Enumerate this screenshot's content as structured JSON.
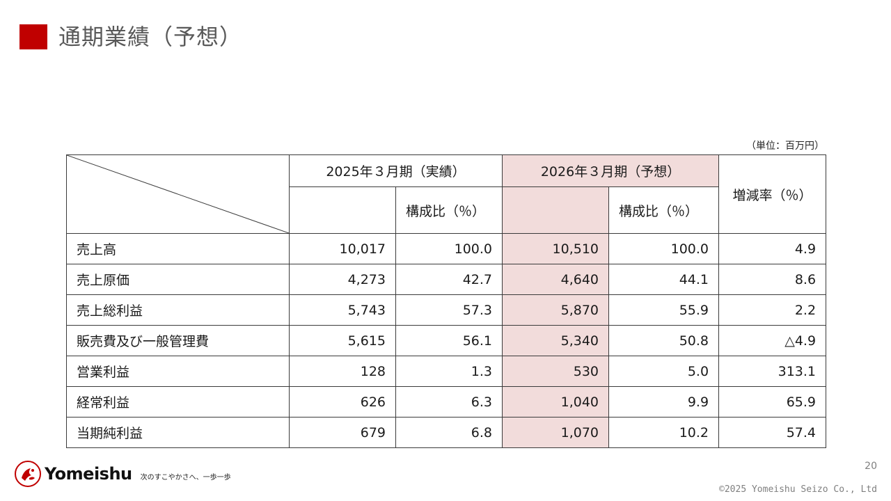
{
  "header": {
    "title": "通期業績（予想）"
  },
  "unit_note": "（単位：百万円）",
  "table": {
    "col_fy2025": "2025年３月期（実績）",
    "col_fy2026": "2026年３月期（予想）",
    "col_ratio_2025": "構成比（％）",
    "col_ratio_2026": "構成比（％）",
    "col_change": "増減率（％）",
    "rows": [
      {
        "label": "売上高",
        "fy2025": "10,017",
        "ratio2025": "100.0",
        "fy2026": "10,510",
        "ratio2026": "100.0",
        "change": "4.9"
      },
      {
        "label": "売上原価",
        "fy2025": "4,273",
        "ratio2025": "42.7",
        "fy2026": "4,640",
        "ratio2026": "44.1",
        "change": "8.6"
      },
      {
        "label": "売上総利益",
        "fy2025": "5,743",
        "ratio2025": "57.3",
        "fy2026": "5,870",
        "ratio2026": "55.9",
        "change": "2.2"
      },
      {
        "label": "販売費及び一般管理費",
        "fy2025": "5,615",
        "ratio2025": "56.1",
        "fy2026": "5,340",
        "ratio2026": "50.8",
        "change": "△4.9"
      },
      {
        "label": "営業利益",
        "fy2025": "128",
        "ratio2025": "1.3",
        "fy2026": "530",
        "ratio2026": "5.0",
        "change": "313.1"
      },
      {
        "label": "経常利益",
        "fy2025": "626",
        "ratio2025": "6.3",
        "fy2026": "1,040",
        "ratio2026": "9.9",
        "change": "65.9"
      },
      {
        "label": "当期純利益",
        "fy2025": "679",
        "ratio2025": "6.8",
        "fy2026": "1,070",
        "ratio2026": "10.2",
        "change": "57.4"
      }
    ]
  },
  "footer": {
    "logo_text": "Yomeishu",
    "tagline": "次のすこやかさへ、一歩一歩",
    "page_number": "20",
    "copyright": "©2025 Yomeishu Seizo Co., Ltd"
  },
  "colors": {
    "accent": "#c00000",
    "highlight": "#f2dcdb"
  }
}
